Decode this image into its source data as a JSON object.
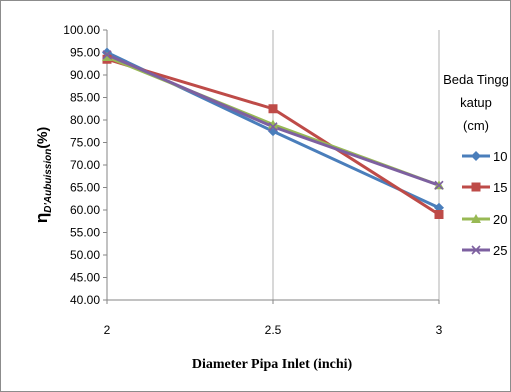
{
  "chart_data": {
    "type": "line",
    "x": [
      "2",
      "2.5",
      "3"
    ],
    "y_ticks": [
      "40.00",
      "45.00",
      "50.00",
      "55.00",
      "60.00",
      "65.00",
      "70.00",
      "75.00",
      "80.00",
      "85.00",
      "90.00",
      "95.00",
      "100.00"
    ],
    "ylim": [
      40,
      100
    ],
    "xlabel": "Diameter Pipa Inlet (inchi)",
    "ylabel_main": "η",
    "ylabel_sub": "D'Aubuission",
    "ylabel_unit": "(%)",
    "legend_title": [
      "Beda Tingg",
      "katup",
      "(cm)"
    ],
    "legend_position": "right",
    "grid": "vertical",
    "series": [
      {
        "name": "10",
        "values": [
          95.0,
          77.5,
          60.5
        ],
        "color": "#4a7ebb",
        "marker": "diamond"
      },
      {
        "name": "15",
        "values": [
          93.5,
          82.5,
          59.0
        ],
        "color": "#be4b48",
        "marker": "square"
      },
      {
        "name": "20",
        "values": [
          94.0,
          79.0,
          65.5
        ],
        "color": "#98b954",
        "marker": "triangle"
      },
      {
        "name": "25",
        "values": [
          94.5,
          78.5,
          65.5
        ],
        "color": "#7d60a0",
        "marker": "x"
      }
    ]
  }
}
